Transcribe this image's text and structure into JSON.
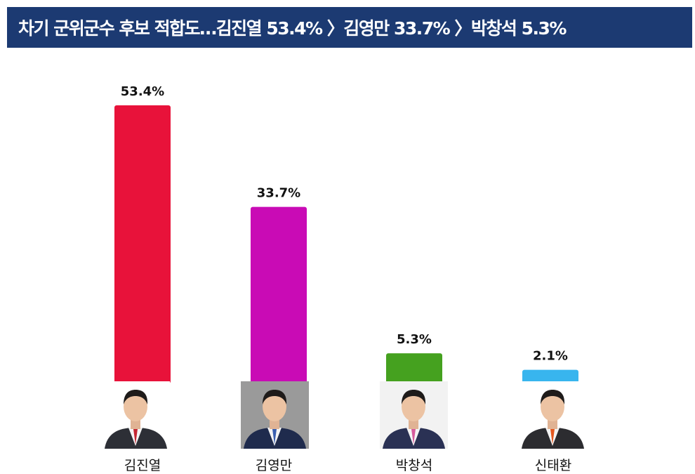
{
  "title": "차기 군위군수 후보 적합도…김진열 53.4% 〉김영만 33.7% 〉박창석 5.3%",
  "chart_data": {
    "type": "bar",
    "categories": [
      "김진열",
      "김영만",
      "박창석",
      "신태환"
    ],
    "values": [
      53.4,
      33.7,
      5.3,
      2.1
    ],
    "value_labels": [
      "53.4%",
      "33.7%",
      "5.3%",
      "2.1%"
    ],
    "colors": [
      "#e8123a",
      "#c90bb5",
      "#45a11f",
      "#38b5ee"
    ],
    "ylim": [
      0,
      60
    ],
    "grid": false,
    "legend": "none"
  },
  "candidates": [
    {
      "name": "김진열",
      "photo_bg": "#ffffff",
      "suit": "#2d2f36",
      "tie": "#c42632"
    },
    {
      "name": "김영만",
      "photo_bg": "#9a9a9a",
      "suit": "#1f2b4d",
      "tie": "#3a5fb0"
    },
    {
      "name": "박창석",
      "photo_bg": "#f2f2f2",
      "suit": "#2a3154",
      "tie": "#d65a9c"
    },
    {
      "name": "신태환",
      "photo_bg": "#ffffff",
      "suit": "#2c2c30",
      "tie": "#e5571e"
    }
  ]
}
